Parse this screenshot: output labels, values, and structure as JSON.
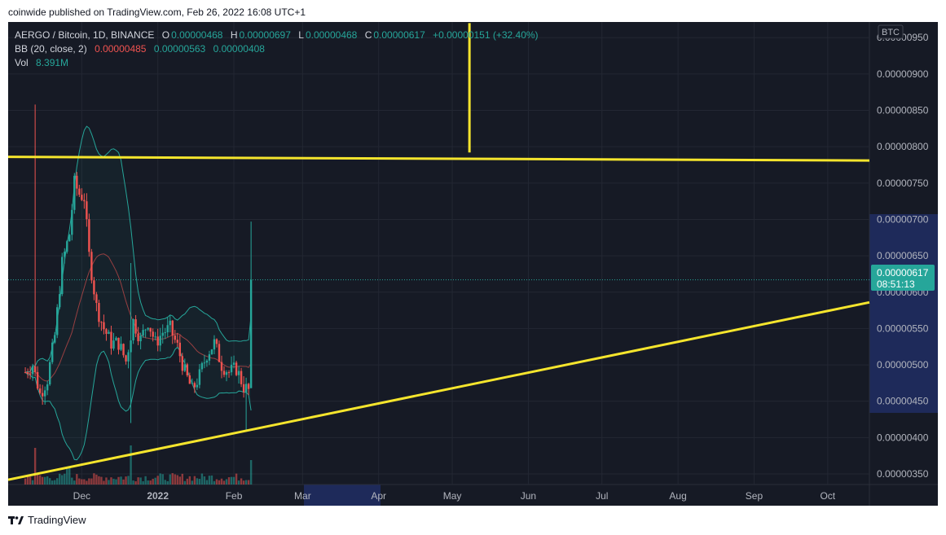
{
  "header": {
    "publisher_line": "coinwide published on TradingView.com, Feb 26, 2022 16:08 UTC+1"
  },
  "legend": {
    "symbol": "AERGO / Bitcoin, 1D, BINANCE",
    "o_label": "O",
    "o_value": "0.00000468",
    "h_label": "H",
    "h_value": "0.00000697",
    "l_label": "L",
    "l_value": "0.00000468",
    "c_label": "C",
    "c_value": "0.00000617",
    "change": "+0.00000151 (+32.40%)",
    "bb_label": "BB (20, close, 2)",
    "bb_basis": "0.00000485",
    "bb_upper": "0.00000563",
    "bb_lower": "0.00000408",
    "vol_label": "Vol",
    "vol_value": "8.391M"
  },
  "price_axis": {
    "currency_badge": "BTC",
    "last_price_label": "0.00000617",
    "countdown": "08:51:13"
  },
  "footer": {
    "brand": "TradingView"
  },
  "colors": {
    "background": "#161a25",
    "up": "#26a69a",
    "down": "#ef5350",
    "trendline": "#f5e52d",
    "bb_band": "#26a69a",
    "bb_basis": "#ef5350",
    "axis_highlight": "#1e2a5a"
  },
  "chart_data": {
    "type": "candlestick",
    "pair": "AERGO / Bitcoin",
    "interval": "1D",
    "exchange": "BINANCE",
    "y_ticks": [
      "0.00000350",
      "0.00000400",
      "0.00000450",
      "0.00000500",
      "0.00000550",
      "0.00000600",
      "0.00000650",
      "0.00000700",
      "0.00000750",
      "0.00000800",
      "0.00000850",
      "0.00000900",
      "0.00000950"
    ],
    "y_range": [
      3.355e-06,
      9.715e-06
    ],
    "x_ticks": [
      "Dec",
      "2022",
      "Feb",
      "Mar",
      "Apr",
      "May",
      "Jun",
      "Jul",
      "Aug",
      "Sep",
      "Oct"
    ],
    "x_tick_dates": [
      "2021-12-01",
      "2022-01-01",
      "2022-02-01",
      "2022-03-01",
      "2022-04-01",
      "2022-05-01",
      "2022-06-01",
      "2022-07-01",
      "2022-08-01",
      "2022-09-01",
      "2022-10-01"
    ],
    "last_candle": {
      "date": "2022-02-26",
      "open": 4.68e-06,
      "high": 6.97e-06,
      "low": 4.68e-06,
      "close": 6.17e-06
    },
    "key_candles": [
      {
        "date": "2021-11-12",
        "high": 8.58e-06
      },
      {
        "date": "2021-11-27",
        "high": 7.8e-06,
        "low": 7.2e-06
      },
      {
        "date": "2021-12-21",
        "high": 6.4e-06,
        "low": 4.2e-06
      },
      {
        "date": "2022-02-24",
        "low": 4.1e-06
      },
      {
        "date": "2022-02-26",
        "high": 6.97e-06,
        "close": 6.17e-06
      }
    ],
    "drawings": [
      {
        "type": "trendline",
        "label": "resistance",
        "from": {
          "date": "2021-11-01",
          "price": 7.86e-06
        },
        "to": {
          "date": "2022-10-18",
          "price": 7.81e-06
        }
      },
      {
        "type": "trendline",
        "label": "support",
        "from": {
          "date": "2021-11-01",
          "price": 3.42e-06
        },
        "to": {
          "date": "2022-10-18",
          "price": 5.86e-06
        }
      },
      {
        "type": "vertical_line",
        "date": "2022-05-08",
        "from_price": 7.92e-06,
        "to_price": 9.7e-06
      }
    ]
  }
}
